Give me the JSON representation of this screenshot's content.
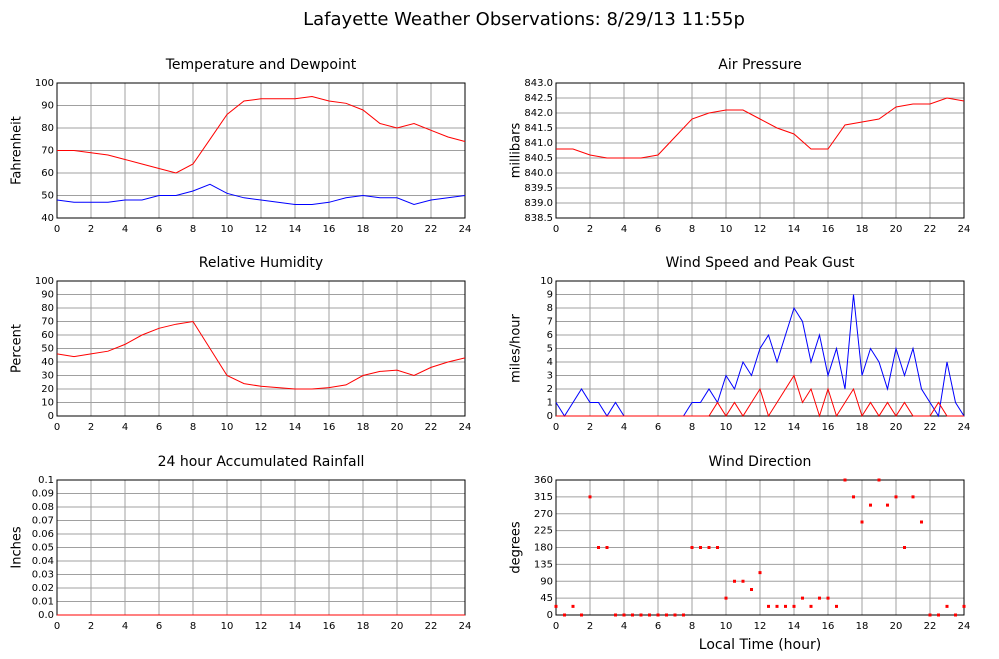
{
  "title": "Lafayette Weather Observations: 8/29/13 11:55p",
  "chart_data": [
    {
      "type": "line",
      "title": "Temperature and Dewpoint",
      "ylabel": "Fahrenheit",
      "grid": true,
      "xlim": [
        0,
        24
      ],
      "xticks": [
        0,
        2,
        4,
        6,
        8,
        10,
        12,
        14,
        16,
        18,
        20,
        22,
        24
      ],
      "ylim": [
        40,
        100
      ],
      "yticks": [
        40,
        50,
        60,
        70,
        80,
        90,
        100
      ],
      "x": [
        0,
        1,
        2,
        3,
        4,
        5,
        6,
        7,
        8,
        9,
        10,
        11,
        12,
        13,
        14,
        15,
        16,
        17,
        18,
        19,
        20,
        21,
        22,
        23,
        24
      ],
      "series": [
        {
          "color": "#ff0000",
          "values": [
            70,
            70,
            69,
            68,
            66,
            64,
            62,
            60,
            64,
            75,
            86,
            92,
            93,
            93,
            93,
            94,
            92,
            91,
            88,
            82,
            80,
            82,
            79,
            76,
            74
          ]
        },
        {
          "color": "#0000ff",
          "values": [
            48,
            47,
            47,
            47,
            48,
            48,
            50,
            50,
            52,
            55,
            51,
            49,
            48,
            47,
            46,
            46,
            47,
            49,
            50,
            49,
            49,
            46,
            48,
            49,
            50
          ]
        }
      ]
    },
    {
      "type": "line",
      "title": "Air Pressure",
      "ylabel": "millibars",
      "grid": true,
      "xlim": [
        0,
        24
      ],
      "xticks": [
        0,
        2,
        4,
        6,
        8,
        10,
        12,
        14,
        16,
        18,
        20,
        22,
        24
      ],
      "ylim": [
        838.5,
        843
      ],
      "yticks": [
        838.5,
        {
          "value": 839,
          "label": "839.0"
        },
        839.5,
        {
          "value": 840,
          "label": "840.0"
        },
        840.5,
        {
          "value": 841,
          "label": "841.0"
        },
        841.5,
        {
          "value": 842,
          "label": "842.0"
        },
        842.5,
        {
          "value": 843,
          "label": "843.0"
        }
      ],
      "x": [
        0,
        1,
        2,
        3,
        4,
        5,
        6,
        7,
        8,
        9,
        10,
        11,
        12,
        13,
        14,
        15,
        16,
        17,
        18,
        19,
        20,
        21,
        22,
        23,
        24
      ],
      "series": [
        {
          "color": "#ff0000",
          "values": [
            840.8,
            840.8,
            840.6,
            840.5,
            840.5,
            840.5,
            840.6,
            841.2,
            841.8,
            842.0,
            842.1,
            842.1,
            841.8,
            841.5,
            841.3,
            840.8,
            840.8,
            841.6,
            841.7,
            841.8,
            842.2,
            842.3,
            842.3,
            842.5,
            842.4
          ]
        }
      ]
    },
    {
      "type": "line",
      "title": "Relative Humidity",
      "ylabel": "Percent",
      "grid": true,
      "xlim": [
        0,
        24
      ],
      "xticks": [
        0,
        2,
        4,
        6,
        8,
        10,
        12,
        14,
        16,
        18,
        20,
        22,
        24
      ],
      "ylim": [
        0,
        100
      ],
      "yticks": [
        0,
        10,
        20,
        30,
        40,
        50,
        60,
        70,
        80,
        90,
        100
      ],
      "x": [
        0,
        1,
        2,
        3,
        4,
        5,
        6,
        7,
        8,
        9,
        10,
        11,
        12,
        13,
        14,
        15,
        16,
        17,
        18,
        19,
        20,
        21,
        22,
        23,
        24
      ],
      "series": [
        {
          "color": "#ff0000",
          "values": [
            46,
            44,
            46,
            48,
            53,
            60,
            65,
            68,
            70,
            50,
            30,
            24,
            22,
            21,
            20,
            20,
            21,
            23,
            30,
            33,
            34,
            30,
            36,
            40,
            43
          ]
        }
      ]
    },
    {
      "type": "line",
      "title": "Wind Speed and Peak Gust",
      "ylabel": "miles/hour",
      "grid": true,
      "xlim": [
        0,
        24
      ],
      "xticks": [
        0,
        2,
        4,
        6,
        8,
        10,
        12,
        14,
        16,
        18,
        20,
        22,
        24
      ],
      "ylim": [
        0,
        10
      ],
      "yticks": [
        0,
        1,
        2,
        3,
        4,
        5,
        6,
        7,
        8,
        9,
        10
      ],
      "x": [
        0,
        0.5,
        1,
        1.5,
        2,
        2.5,
        3,
        3.5,
        4,
        4.5,
        5,
        5.5,
        6,
        6.5,
        7,
        7.5,
        8,
        8.5,
        9,
        9.5,
        10,
        10.5,
        11,
        11.5,
        12,
        12.5,
        13,
        13.5,
        14,
        14.5,
        15,
        15.5,
        16,
        16.5,
        17,
        17.5,
        18,
        18.5,
        19,
        19.5,
        20,
        20.5,
        21,
        21.5,
        22,
        22.5,
        23,
        23.5,
        24
      ],
      "series": [
        {
          "color": "#0000ff",
          "values": [
            1,
            0,
            1,
            2,
            1,
            1,
            0,
            1,
            0,
            0,
            0,
            0,
            0,
            0,
            0,
            0,
            1,
            1,
            2,
            1,
            3,
            2,
            4,
            3,
            5,
            6,
            4,
            6,
            8,
            7,
            4,
            6,
            3,
            5,
            2,
            9,
            3,
            5,
            4,
            2,
            5,
            3,
            5,
            2,
            1,
            0,
            4,
            1,
            0
          ]
        },
        {
          "color": "#ff0000",
          "values": [
            0,
            0,
            0,
            0,
            0,
            0,
            0,
            0,
            0,
            0,
            0,
            0,
            0,
            0,
            0,
            0,
            0,
            0,
            0,
            1,
            0,
            1,
            0,
            1,
            2,
            0,
            1,
            2,
            3,
            1,
            2,
            0,
            2,
            0,
            1,
            2,
            0,
            1,
            0,
            1,
            0,
            1,
            0,
            0,
            0,
            1,
            0,
            0,
            0
          ]
        }
      ]
    },
    {
      "type": "line",
      "title": "24 hour Accumulated Rainfall",
      "ylabel": "Inches",
      "grid": true,
      "xlim": [
        0,
        24
      ],
      "xticks": [
        0,
        2,
        4,
        6,
        8,
        10,
        12,
        14,
        16,
        18,
        20,
        22,
        24
      ],
      "ylim": [
        0,
        0.1
      ],
      "yticks": [
        {
          "value": 0,
          "label": "0.0"
        },
        0.01,
        0.02,
        0.03,
        0.04,
        0.05,
        0.06,
        0.07,
        0.08,
        0.09,
        0.1
      ],
      "x": [
        0,
        24
      ],
      "series": [
        {
          "color": "#ff0000",
          "values": [
            0,
            0
          ]
        }
      ]
    },
    {
      "type": "scatter",
      "title": "Wind Direction",
      "ylabel": "degrees",
      "xlabel": "Local Time (hour)",
      "grid": true,
      "xlim": [
        0,
        24
      ],
      "xticks": [
        0,
        2,
        4,
        6,
        8,
        10,
        12,
        14,
        16,
        18,
        20,
        22,
        24
      ],
      "ylim": [
        0,
        360
      ],
      "yticks": [
        0,
        45,
        90,
        135,
        180,
        225,
        270,
        315,
        360
      ],
      "x": [
        0,
        0.5,
        1,
        1.5,
        2,
        2.5,
        3,
        3.5,
        4,
        4.5,
        5,
        5.5,
        6,
        6.5,
        7,
        7.5,
        8,
        8.5,
        9,
        9.5,
        10,
        10.5,
        11,
        11.5,
        12,
        12.5,
        13,
        13.5,
        14,
        14.5,
        15,
        15.5,
        16,
        16.5,
        17,
        17.5,
        18,
        18.5,
        19,
        19.5,
        20,
        20.5,
        21,
        21.5,
        22,
        22.5,
        23,
        23.5,
        24
      ],
      "series": [
        {
          "color": "#ff0000",
          "values": [
            23,
            0,
            23,
            0,
            315,
            180,
            180,
            0,
            0,
            0,
            0,
            0,
            0,
            0,
            0,
            0,
            180,
            180,
            180,
            180,
            45,
            90,
            90,
            68,
            113,
            23,
            23,
            23,
            23,
            45,
            23,
            45,
            45,
            23,
            360,
            315,
            248,
            293,
            360,
            293,
            315,
            180,
            315,
            248,
            0,
            0,
            23,
            0,
            23
          ]
        }
      ]
    }
  ]
}
